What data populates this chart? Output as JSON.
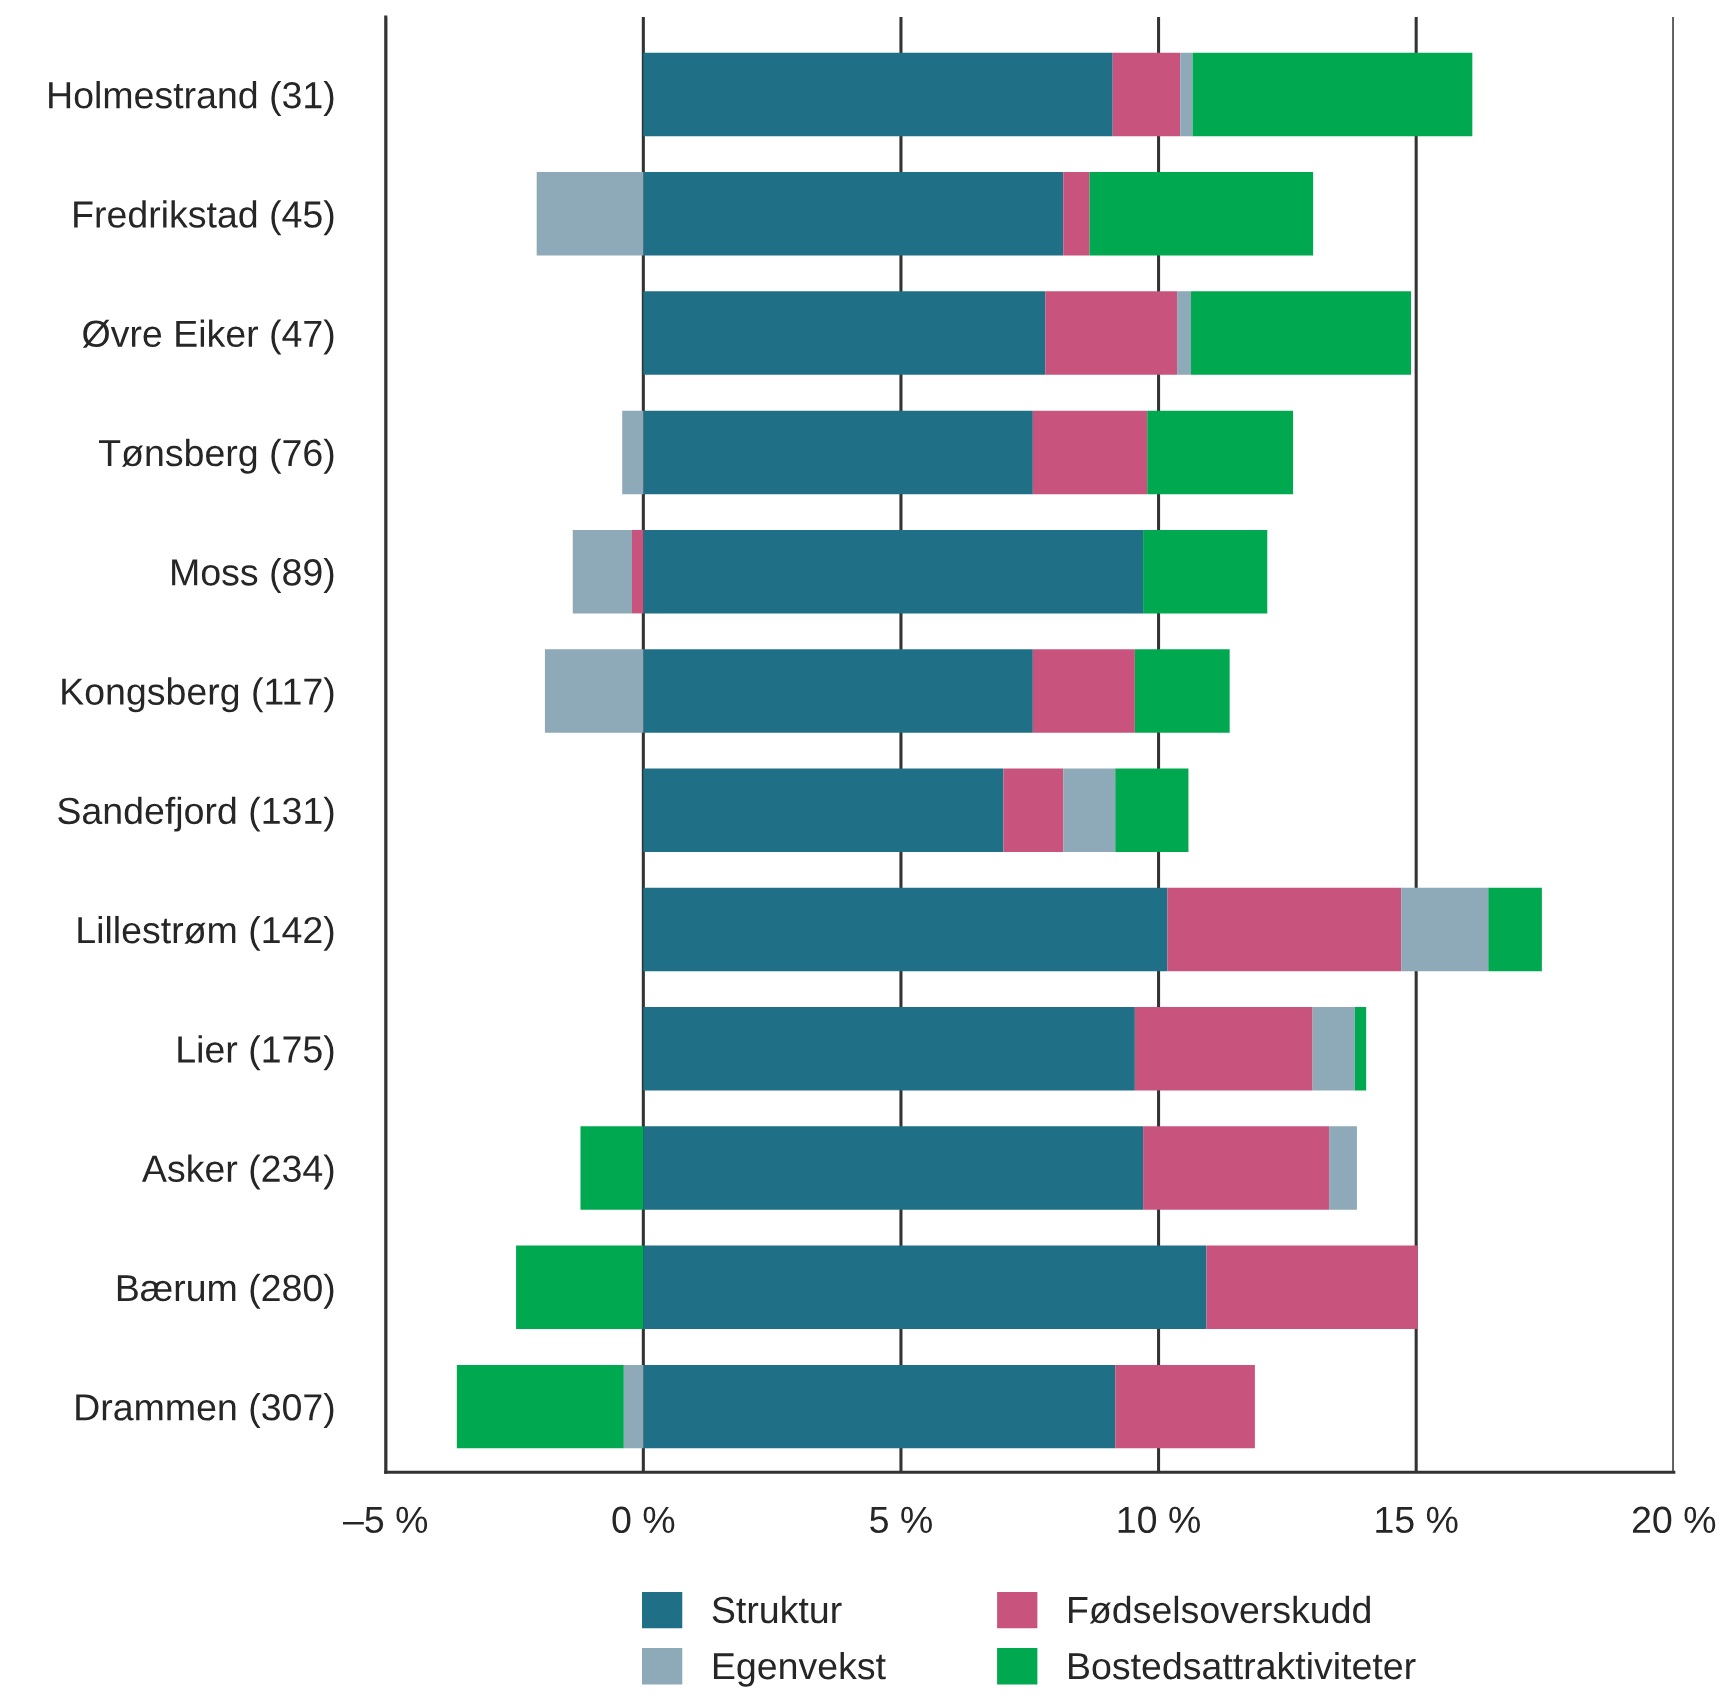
{
  "chart_data": {
    "type": "bar",
    "orientation": "horizontal",
    "stacked": true,
    "categories": [
      "Holmestrand (31)",
      "Fredrikstad (45)",
      "Øvre Eiker (47)",
      "Tønsberg (76)",
      "Moss (89)",
      "Kongsberg (117)",
      "Sandefjord (131)",
      "Lillestrøm (142)",
      "Lier (175)",
      "Asker (234)",
      "Bærum (280)",
      "Drammen (307)"
    ],
    "series": [
      {
        "name": "Struktur",
        "color": "#1f7086",
        "values": [
          9.11,
          8.15,
          7.8,
          7.56,
          9.7,
          7.56,
          6.99,
          10.17,
          9.54,
          9.7,
          10.93,
          9.16
        ]
      },
      {
        "name": "Fødselsoverskudd",
        "color": "#c8547e",
        "values": [
          1.31,
          0.51,
          2.56,
          2.22,
          -0.22,
          1.98,
          1.16,
          4.54,
          3.45,
          3.61,
          4.1,
          2.71
        ]
      },
      {
        "name": "Egenvekst",
        "color": "#8ea9b8",
        "values": [
          0.24,
          -2.07,
          0.27,
          -0.41,
          -1.15,
          -1.91,
          1.01,
          1.69,
          0.82,
          0.54,
          null,
          -0.38
        ]
      },
      {
        "name": "Bostedsattraktiviteter",
        "color": "#00a84f",
        "values": [
          5.43,
          4.34,
          4.27,
          2.83,
          2.41,
          1.84,
          1.42,
          1.04,
          0.22,
          -1.22,
          -2.47,
          -3.24
        ]
      }
    ],
    "xlim": [
      -5,
      20
    ],
    "xticks": [
      {
        "value": -5,
        "label": "–5 %"
      },
      {
        "value": 0,
        "label": "0 %"
      },
      {
        "value": 5,
        "label": "5 %"
      },
      {
        "value": 10,
        "label": "10 %"
      },
      {
        "value": 15,
        "label": "15 %"
      },
      {
        "value": 20,
        "label": "20 %"
      }
    ],
    "grid": "x",
    "legend": "bottom"
  }
}
